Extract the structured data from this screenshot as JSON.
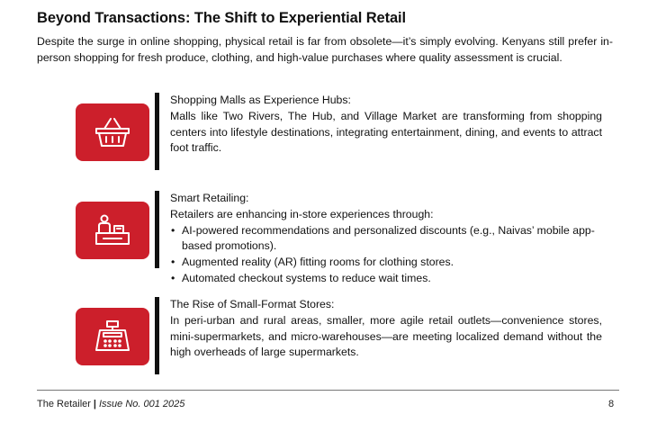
{
  "title": "Beyond Transactions: The Shift to Experiential Retail",
  "intro": "Despite the surge in online shopping, physical retail is far from obsolete—it’s simply evolving. Kenyans still prefer in-person shopping for fresh produce, clothing, and high-value purchases where quality assessment is crucial.",
  "sections": [
    {
      "icon": "shopping-basket-icon",
      "heading": "Shopping Malls as Experience Hubs:",
      "text": "Malls like Two Rivers, The Hub, and Village Market are transforming from shopping centers into lifestyle destinations, integrating entertainment, dining, and events to attract foot traffic."
    },
    {
      "icon": "cashier-counter-icon",
      "heading": "Smart Retailing:",
      "text": "Retailers are enhancing in-store experiences through:",
      "bullets": [
        "AI-powered recommendations and personalized discounts (e.g., Naivas’ mobile app-based promotions).",
        "Augmented reality (AR) fitting rooms for clothing stores.",
        "Automated checkout systems to reduce wait times."
      ]
    },
    {
      "icon": "cash-register-icon",
      "heading": "The Rise of Small-Format Stores:",
      "text": "In peri-urban and rural areas, smaller, more agile retail outlets—convenience stores, mini-supermarkets, and micro-warehouses—are meeting localized demand without the high overheads of large supermarkets."
    }
  ],
  "footer": {
    "publication": "The Retailer",
    "separator": "|",
    "issue": "Issue No. 001 2025",
    "page_number": "8"
  },
  "colors": {
    "accent": "#cc1f2b",
    "divider": "#111111",
    "text": "#111111"
  }
}
